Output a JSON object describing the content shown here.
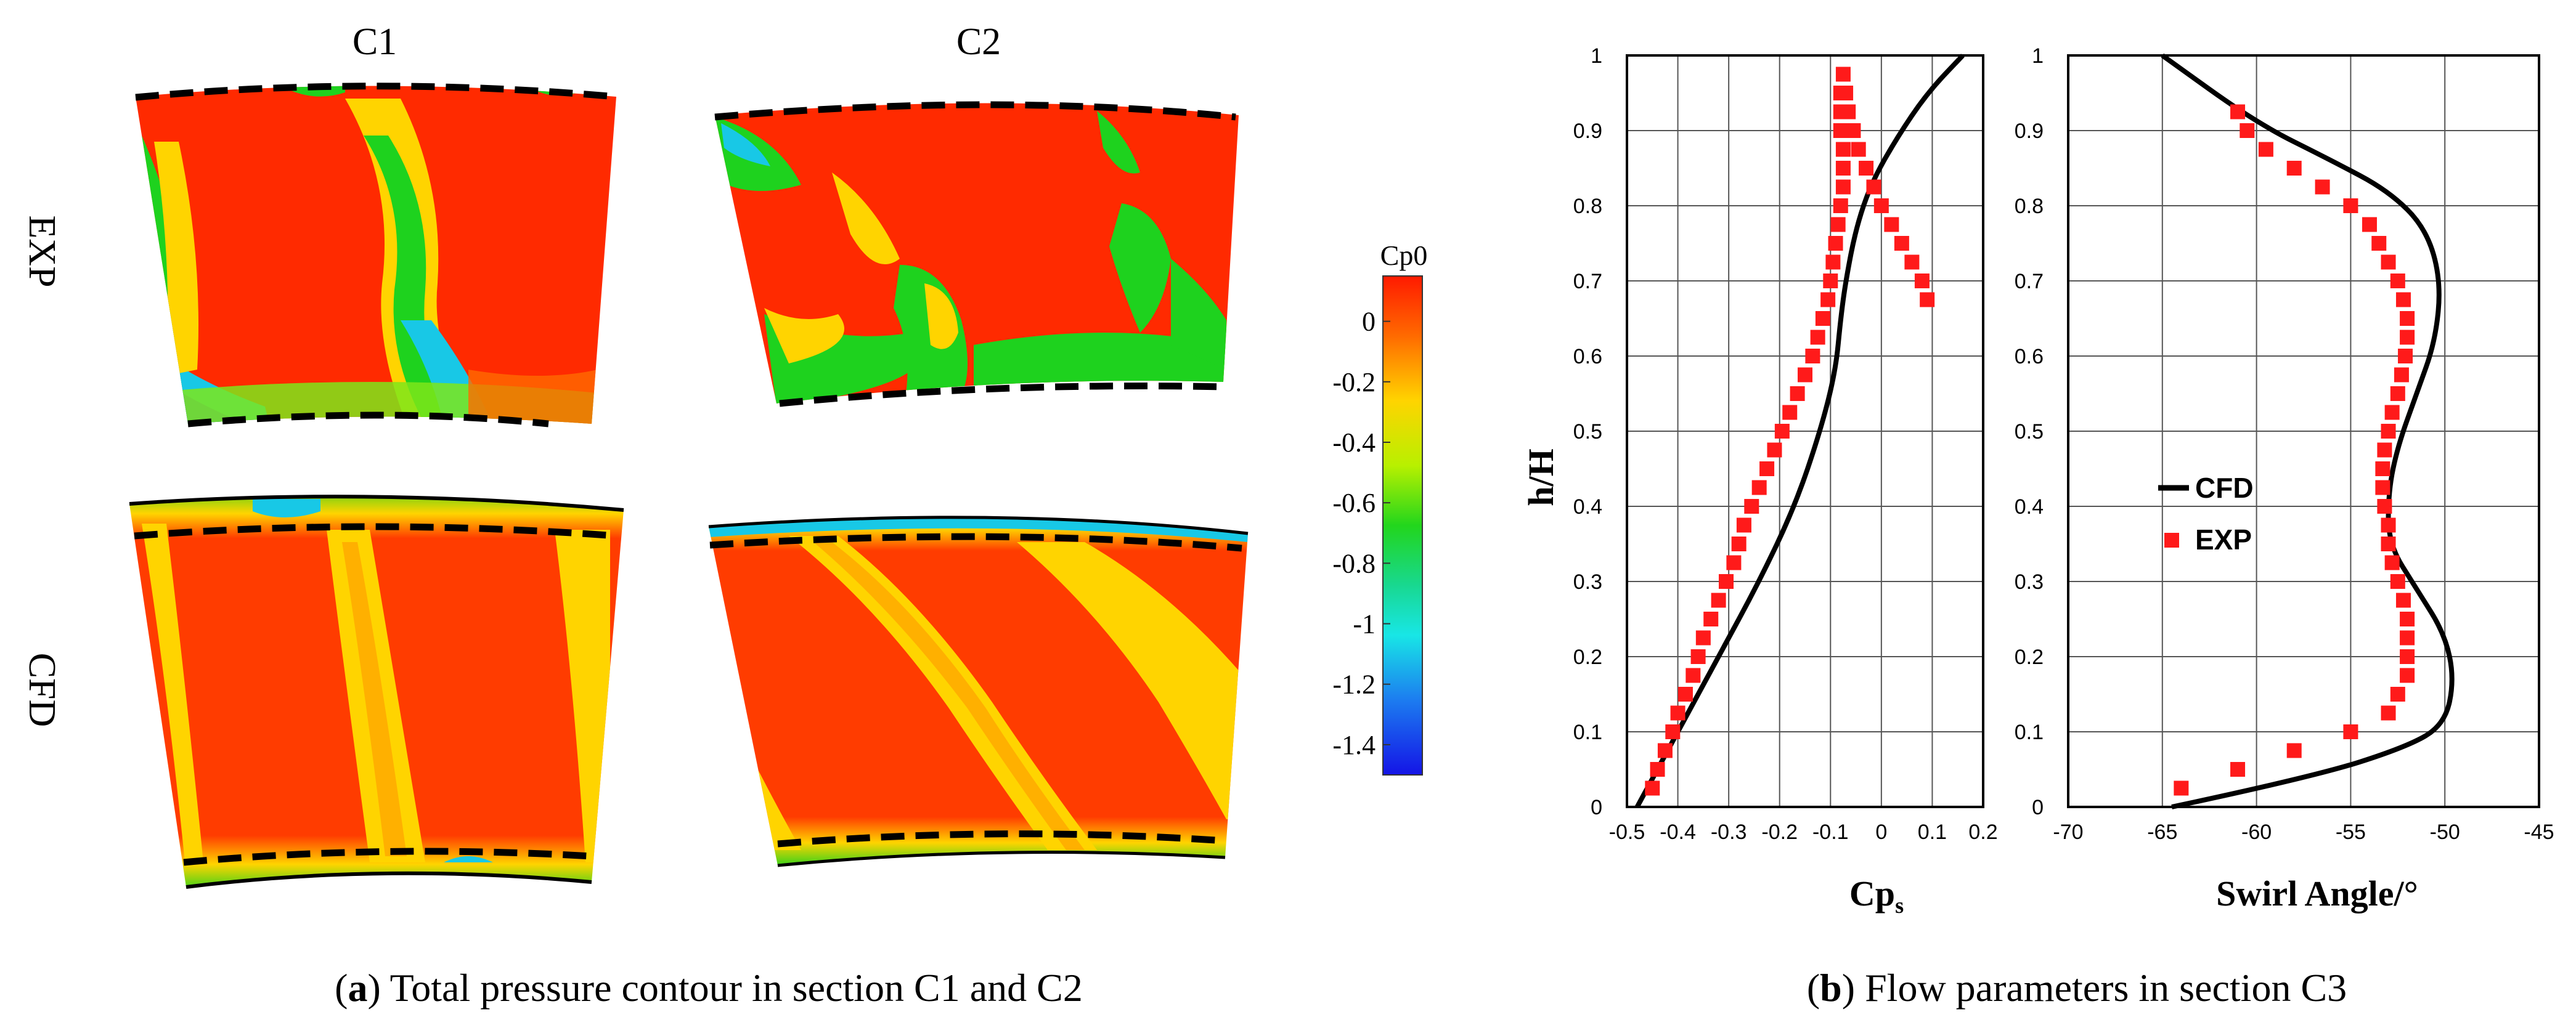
{
  "panel_a": {
    "caption_letter": "a",
    "caption_text": ") Total pressure contour in section C1 and C2",
    "column_labels": [
      "C1",
      "C2"
    ],
    "row_labels": [
      "EXP",
      "CFD"
    ],
    "colorbar": {
      "title": "Cp0",
      "ticks": [
        "0",
        "-0.2",
        "-0.4",
        "-0.6",
        "-0.8",
        "-1",
        "-1.2",
        "-1.4"
      ],
      "range": [
        -1.5,
        0.15
      ]
    },
    "colors": {
      "high": "#ff2200",
      "mid": "#ffd400",
      "low": "#14d01a",
      "min": "#1414e6",
      "cyan": "#18e6e6"
    }
  },
  "panel_b": {
    "caption_letter": "b",
    "caption_text": ") Flow parameters in section C3",
    "legend": {
      "cfd": "CFD",
      "exp": "EXP"
    },
    "colors": {
      "cfd": "#000000",
      "exp": "#ff1a1a"
    }
  },
  "chart_data": [
    {
      "type": "line",
      "title": "",
      "xlabel_main": "Cp",
      "xlabel_sub": "s",
      "ylabel": "h/H",
      "xlim": [
        -0.5,
        0.2
      ],
      "ylim": [
        0,
        1
      ],
      "xticks": [
        "-0.5",
        "-0.4",
        "-0.3",
        "-0.2",
        "-0.1",
        "0",
        "0.1",
        "0.2"
      ],
      "yticks": [
        "0",
        "0.1",
        "0.2",
        "0.3",
        "0.4",
        "0.5",
        "0.6",
        "0.7",
        "0.8",
        "0.9",
        "1"
      ],
      "series": [
        {
          "name": "CFD",
          "style": "line",
          "x": [
            -0.48,
            -0.4,
            -0.32,
            -0.24,
            -0.17,
            -0.12,
            -0.09,
            -0.08,
            -0.07,
            -0.05,
            -0.02,
            0.03,
            0.09,
            0.16
          ],
          "y": [
            0.0,
            0.1,
            0.2,
            0.3,
            0.4,
            0.5,
            0.58,
            0.65,
            0.7,
            0.77,
            0.83,
            0.89,
            0.95,
            1.0
          ]
        },
        {
          "name": "EXP",
          "style": "markers",
          "x": [
            -0.45,
            -0.44,
            -0.425,
            -0.41,
            -0.4,
            -0.385,
            -0.37,
            -0.36,
            -0.35,
            -0.335,
            -0.32,
            -0.305,
            -0.29,
            -0.28,
            -0.27,
            -0.255,
            -0.24,
            -0.225,
            -0.21,
            -0.195,
            -0.18,
            -0.165,
            -0.15,
            -0.135,
            -0.125,
            -0.115,
            -0.105,
            -0.1,
            -0.095,
            -0.09,
            -0.085,
            -0.08,
            -0.075,
            -0.075,
            -0.075,
            -0.08,
            -0.08,
            -0.08,
            -0.075,
            -0.07,
            -0.065,
            -0.055,
            -0.045,
            -0.03,
            -0.015,
            0.0,
            0.02,
            0.04,
            0.06,
            0.08,
            0.09
          ],
          "y": [
            0.025,
            0.05,
            0.075,
            0.1,
            0.125,
            0.15,
            0.175,
            0.2,
            0.225,
            0.25,
            0.275,
            0.3,
            0.325,
            0.35,
            0.375,
            0.4,
            0.425,
            0.45,
            0.475,
            0.5,
            0.525,
            0.55,
            0.575,
            0.6,
            0.625,
            0.65,
            0.675,
            0.7,
            0.725,
            0.75,
            0.775,
            0.8,
            0.825,
            0.85,
            0.875,
            0.9,
            0.925,
            0.95,
            0.975,
            0.95,
            0.925,
            0.9,
            0.875,
            0.85,
            0.825,
            0.8,
            0.775,
            0.75,
            0.725,
            0.7,
            0.675
          ]
        }
      ]
    },
    {
      "type": "line",
      "title": "",
      "xlabel": "Swirl Angle/°",
      "ylabel": "",
      "xlim": [
        -70,
        -45
      ],
      "ylim": [
        0,
        1
      ],
      "xticks": [
        "-70",
        "-65",
        "-60",
        "-55",
        "-50",
        "-45"
      ],
      "yticks": [
        "0",
        "0.1",
        "0.2",
        "0.3",
        "0.4",
        "0.5",
        "0.6",
        "0.7",
        "0.8",
        "0.9",
        "1"
      ],
      "series": [
        {
          "name": "CFD",
          "style": "line",
          "x": [
            -64.5,
            -57,
            -52,
            -50,
            -49.5,
            -50,
            -51.5,
            -53,
            -53,
            -52.5,
            -51.5,
            -50.5,
            -50.2,
            -51,
            -53,
            -56,
            -60,
            -65
          ],
          "y": [
            0.0,
            0.04,
            0.08,
            0.11,
            0.17,
            0.23,
            0.29,
            0.35,
            0.42,
            0.48,
            0.55,
            0.62,
            0.7,
            0.77,
            0.82,
            0.86,
            0.91,
            1.0
          ]
        },
        {
          "name": "EXP",
          "style": "markers",
          "x": [
            -64,
            -61,
            -58,
            -55,
            -53,
            -52.5,
            -52,
            -52,
            -52,
            -52,
            -52.2,
            -52.5,
            -52.8,
            -53,
            -53,
            -53.2,
            -53.3,
            -53.3,
            -53.2,
            -53,
            -52.8,
            -52.5,
            -52.3,
            -52.1,
            -52,
            -52,
            -52.2,
            -52.5,
            -53,
            -53.5,
            -54,
            -55,
            -56.5,
            -58,
            -59.5,
            -60.5,
            -61
          ],
          "y": [
            0.025,
            0.05,
            0.075,
            0.1,
            0.125,
            0.15,
            0.175,
            0.2,
            0.225,
            0.25,
            0.275,
            0.3,
            0.325,
            0.35,
            0.375,
            0.4,
            0.425,
            0.45,
            0.475,
            0.5,
            0.525,
            0.55,
            0.575,
            0.6,
            0.625,
            0.65,
            0.675,
            0.7,
            0.725,
            0.75,
            0.775,
            0.8,
            0.825,
            0.85,
            0.875,
            0.9,
            0.925
          ]
        }
      ]
    }
  ]
}
